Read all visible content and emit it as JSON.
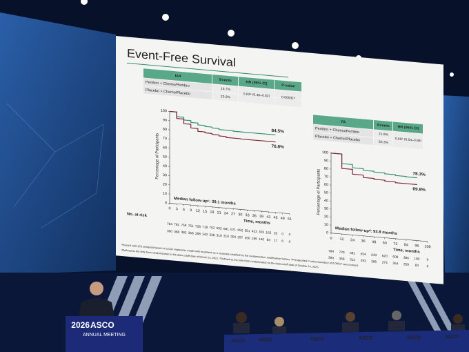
{
  "slide": {
    "title": "Event-Free Survival",
    "panels": [
      {
        "table": {
          "header": [
            "IA4",
            "Events",
            "HR (95% CI)",
            "P-value"
          ],
          "rows": [
            [
              "Pembro + Chemo/Pembro",
              "15.7%",
              "0.63ᵃ (0.48–0.82)",
              "0.00031ᵇ"
            ],
            [
              "Placebo + Chemo/Placebo",
              "23.8%"
            ]
          ]
        },
        "chart": {
          "type": "line",
          "ylabel": "Percentage of Participants",
          "xlabel": "Time, months",
          "ylim": [
            0,
            100
          ],
          "yticks": [
            0,
            10,
            20,
            30,
            40,
            50,
            60,
            70,
            80,
            90,
            100
          ],
          "xlim": [
            0,
            51
          ],
          "xticks": [
            0,
            3,
            6,
            9,
            12,
            15,
            18,
            21,
            24,
            27,
            30,
            33,
            36,
            39,
            42,
            45,
            48,
            51
          ],
          "series": [
            {
              "color": "#2e8b6e",
              "end_label": "84.5%",
              "x": [
                0,
                3,
                6,
                9,
                12,
                15,
                18,
                21,
                24,
                27,
                30,
                33,
                36,
                39,
                42,
                45
              ],
              "values": [
                100,
                95,
                92,
                90,
                88,
                87,
                86,
                85,
                85,
                84.5,
                84.5,
                84.5,
                84.5,
                84.5,
                84.5,
                84.5
              ]
            },
            {
              "color": "#7a2030",
              "end_label": "76.8%",
              "x": [
                0,
                3,
                6,
                9,
                12,
                15,
                18,
                21,
                24,
                27,
                30,
                33,
                36,
                39,
                42,
                45
              ],
              "values": [
                100,
                93,
                88,
                84,
                81,
                80,
                79,
                78,
                77,
                77,
                76.8,
                76.8,
                76.8,
                76.8,
                76.8,
                76.8
              ]
            }
          ],
          "median_note": "Median follow-upᶜ: 39.1 months",
          "risk_title": "No. at risk",
          "risk": [
            [
              784,
              781,
              769,
              751,
              728,
              718,
              702,
              692,
              681,
              671,
              652,
              551,
              433,
              303,
              165,
              26,
              0,
              0
            ],
            [
              390,
              388,
              382,
              368,
              358,
              342,
              328,
              319,
              310,
              304,
              297,
              250,
              195,
              140,
              83,
              17,
              6,
              0
            ]
          ]
        }
      },
      {
        "table": {
          "header": [
            "FA",
            "Events",
            "HR (95% CI)"
          ],
          "rows": [
            [
              "Pembro + Chemo/Pembro",
              "21.9%",
              "0.68ᵃ (0.54–0.86)"
            ],
            [
              "Placebo + Chemo/Placebo",
              "30.3%"
            ]
          ]
        },
        "chart": {
          "type": "line",
          "ylabel": "Percentage of Participants",
          "xlabel": "Time, months",
          "ylim": [
            0,
            100
          ],
          "yticks": [
            0,
            10,
            20,
            30,
            40,
            50,
            60,
            70,
            80,
            90,
            100
          ],
          "xlim": [
            0,
            108
          ],
          "xticks": [
            0,
            12,
            24,
            36,
            48,
            60,
            72,
            84,
            96,
            108
          ],
          "series": [
            {
              "color": "#2e8b6e",
              "end_label": "78.3%",
              "x": [
                0,
                12,
                24,
                36,
                48,
                60,
                72,
                84,
                96
              ],
              "values": [
                100,
                88,
                84,
                82,
                81,
                80,
                79,
                78.5,
                78.3
              ]
            },
            {
              "color": "#7a2030",
              "end_label": "69.8%",
              "x": [
                0,
                12,
                24,
                36,
                48,
                60,
                72,
                84,
                96
              ],
              "values": [
                100,
                82,
                76,
                73,
                72,
                71,
                70,
                70,
                69.8
              ]
            }
          ],
          "median_note": "Median follow-upᵈ: 93.8 months",
          "risk": [
            [
              784,
              720,
              681,
              654,
              633,
              620,
              608,
              386,
              180,
              0
            ],
            [
              390,
              358,
              312,
              293,
              286,
              274,
              264,
              259,
              83,
              0
            ]
          ]
        }
      }
    ],
    "footnotes": [
      "ᵃHazard ratio (CI) analyzed based on a Cox regression model with treatment as a covariate stratified by the randomization stratification factors. ᵇPrespecified P-value boundary of 0.00517 was crossed.",
      "ᶜDefined as the time from randomization to the data cutoff date of March 23, 2021. ᵈDefined as the time from randomization to the data cutoff date of October 14, 2025."
    ]
  },
  "stage": {
    "podium": {
      "year": "2026",
      "logo": "ASCO",
      "subtitle": "ANNUAL MEETING"
    },
    "table_logo": "ASCO"
  }
}
